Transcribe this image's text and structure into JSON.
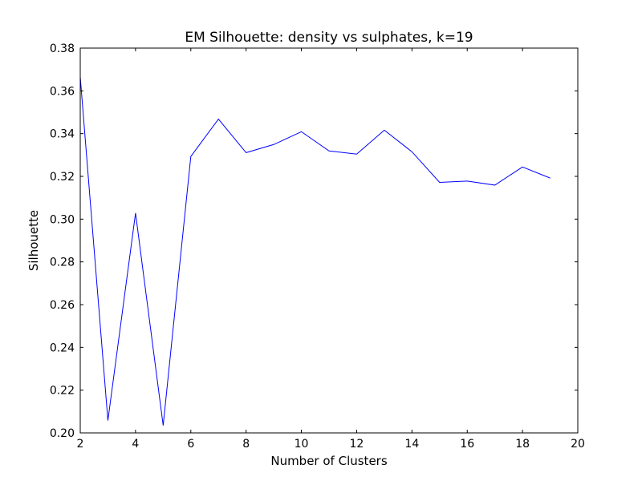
{
  "chart_data": {
    "type": "line",
    "title": "EM Silhouette: density vs sulphates, k=19",
    "xlabel": "Number of Clusters",
    "ylabel": "Silhouette",
    "xlim": [
      2,
      20
    ],
    "ylim": [
      0.2,
      0.38
    ],
    "xticks": [
      2,
      4,
      6,
      8,
      10,
      12,
      14,
      16,
      18,
      20
    ],
    "yticks": [
      0.2,
      0.22,
      0.24,
      0.26,
      0.28,
      0.3,
      0.32,
      0.34,
      0.36,
      0.38
    ],
    "xtick_labels": [
      "2",
      "4",
      "6",
      "8",
      "10",
      "12",
      "14",
      "16",
      "18",
      "20"
    ],
    "ytick_labels": [
      "0.20",
      "0.22",
      "0.24",
      "0.26",
      "0.28",
      "0.30",
      "0.32",
      "0.34",
      "0.36",
      "0.38"
    ],
    "grid": false,
    "line_color": "#0000ff",
    "series": [
      {
        "x": [
          2,
          3,
          4,
          5,
          6,
          7,
          8,
          9,
          10,
          11,
          12,
          13,
          14,
          15,
          16,
          17,
          18,
          19
        ],
        "values": [
          0.3665,
          0.2058,
          0.3028,
          0.2035,
          0.3293,
          0.3468,
          0.3311,
          0.3349,
          0.3409,
          0.3319,
          0.3304,
          0.3416,
          0.3315,
          0.3172,
          0.3178,
          0.3159,
          0.3244,
          0.3192
        ]
      }
    ]
  }
}
